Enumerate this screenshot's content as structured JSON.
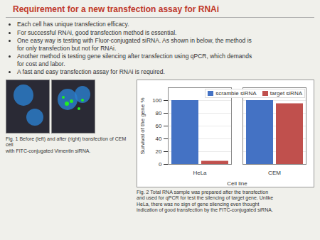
{
  "chart_data": {
    "type": "bar",
    "title": "Requirement for a new transfection assay for RNAi",
    "annotations": [
      "Each cell has unique transfection efficacy.",
      "For successful RNAi, good transfection method is essential.",
      "One easy way is testing with Fluor-conjugated siRNA. As shown in below, the method is\nfor only transfection but not for RNAi.",
      "Another method is testing gene silencing after transfection using qPCR, which demands\nfor cost and labor.",
      "A fast and easy transfection assay for RNAi is required.",
      "Fig. 1 Before (left) and after (right) transfection of CEM cell\nwith FITC-conjugated Vimentin siRNA.",
      "Fig. 2 Total RNA sample was prepared after the transfection\nand used for qPCR for test the silencing of target gene.  Unlike\nHeLa, there was no sign of gene silencing even thought\nindication of good transfection by the FITC-conjugated siRNA."
    ],
    "categories": [
      "HeLa",
      "CEM"
    ],
    "series": [
      {
        "name": "scramble siRNA",
        "color": "#4472C4",
        "values": [
          100,
          100
        ]
      },
      {
        "name": "target siRNA",
        "color": "#C0504D",
        "values": [
          5,
          95
        ]
      }
    ],
    "xlabel": "Cell line",
    "ylabel": "Survival of the gene %",
    "ylim": [
      0,
      120
    ],
    "yticks": [
      0,
      20,
      40,
      60,
      80,
      100
    ],
    "grid": true,
    "legend": "upper right"
  }
}
